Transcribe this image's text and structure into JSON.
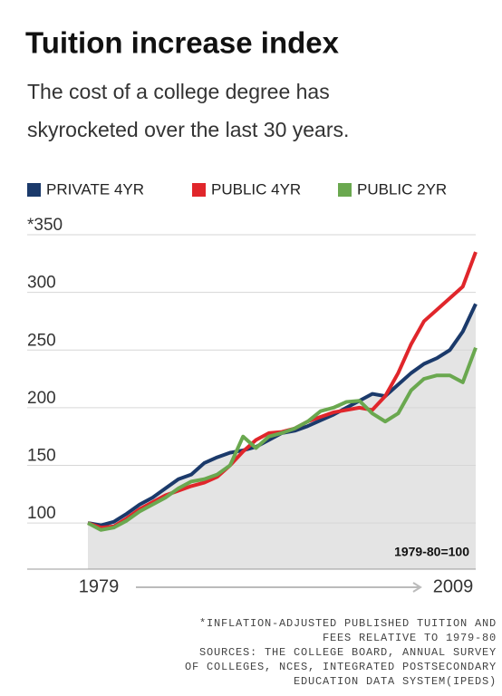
{
  "chart_data": {
    "type": "line",
    "title": "Tuition increase index",
    "subtitle": [
      "The cost of a college degree has",
      "skyrocketed over the last 30 years."
    ],
    "x": [
      1979,
      1980,
      1981,
      1982,
      1983,
      1984,
      1985,
      1986,
      1987,
      1988,
      1989,
      1990,
      1991,
      1992,
      1993,
      1994,
      1995,
      1996,
      1997,
      1998,
      1999,
      2000,
      2001,
      2002,
      2003,
      2004,
      2005,
      2006,
      2007,
      2008,
      2009
    ],
    "series": [
      {
        "name": "PRIVATE 4YR",
        "color": "#1b3a6b",
        "values": [
          100,
          98,
          101,
          108,
          116,
          122,
          130,
          138,
          142,
          152,
          157,
          161,
          163,
          166,
          172,
          178,
          180,
          184,
          189,
          194,
          200,
          206,
          212,
          210,
          220,
          230,
          238,
          243,
          250,
          266,
          290
        ]
      },
      {
        "name": "PUBLIC 4YR",
        "color": "#e0262b",
        "values": [
          100,
          96,
          97,
          104,
          112,
          118,
          124,
          128,
          132,
          135,
          140,
          150,
          162,
          172,
          178,
          179,
          182,
          188,
          192,
          196,
          198,
          200,
          198,
          210,
          230,
          255,
          275,
          285,
          295,
          305,
          335
        ]
      },
      {
        "name": "PUBLIC 2YR",
        "color": "#6aa84f",
        "values": [
          100,
          94,
          96,
          102,
          110,
          116,
          122,
          130,
          136,
          138,
          142,
          150,
          175,
          165,
          175,
          178,
          182,
          188,
          197,
          200,
          205,
          206,
          195,
          188,
          195,
          215,
          225,
          228,
          228,
          222,
          252
        ]
      }
    ],
    "xlim": [
      1979,
      2009
    ],
    "xticks": [
      1979,
      2009
    ],
    "ylim": [
      60,
      350
    ],
    "yticks": [
      {
        "value": 350,
        "label": "*350"
      },
      300,
      250,
      200,
      150,
      100
    ],
    "grid": true,
    "area_color": "#e4e4e4",
    "annotation": "1979-80=100",
    "footnote": [
      "*INFLATION-ADJUSTED PUBLISHED TUITION AND",
      "FEES RELATIVE TO 1979-80",
      "SOURCES: THE COLLEGE BOARD, ANNUAL SURVEY",
      "OF COLLEGES, NCES, INTEGRATED POSTSECONDARY",
      "EDUCATION DATA SYSTEM(IPEDS)"
    ]
  }
}
